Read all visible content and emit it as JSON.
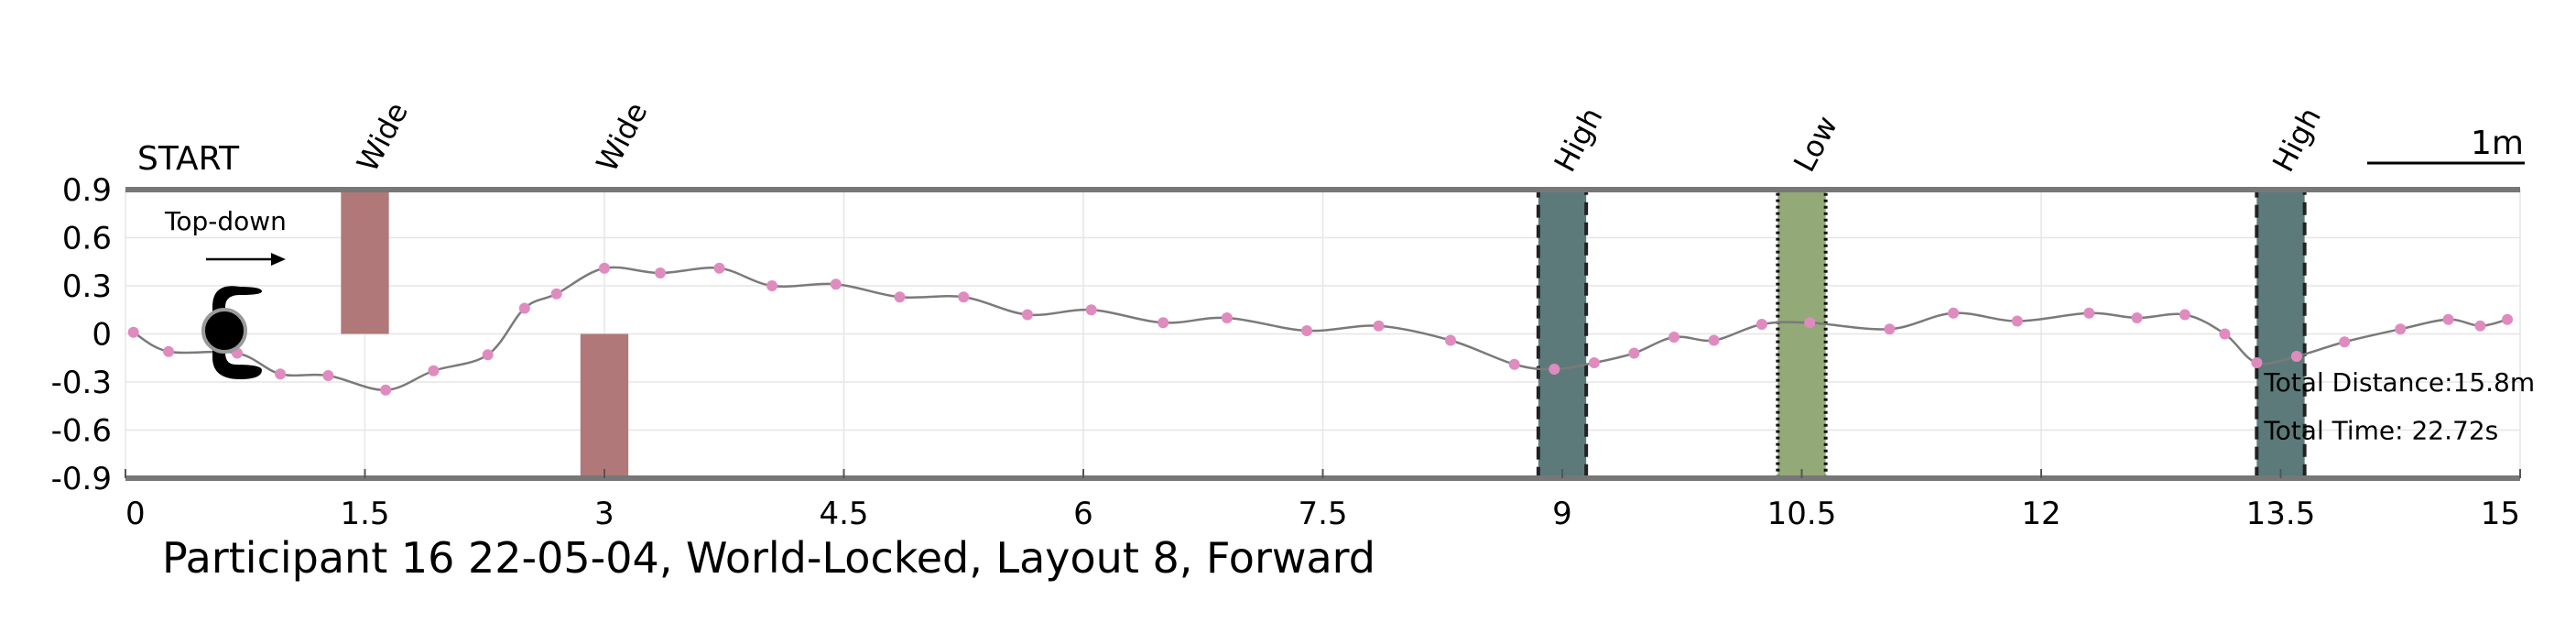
{
  "chart_data": {
    "type": "line",
    "title": "Participant 16 22-05-04, World-Locked, Layout 8, Forward",
    "start_label": "START",
    "direction_label": "Top-down",
    "scale_label": "1m",
    "xlim": [
      0,
      15
    ],
    "ylim": [
      -0.9,
      0.9
    ],
    "x_ticks": [
      0,
      1.5,
      3,
      4.5,
      6,
      7.5,
      9,
      10.5,
      12,
      13.5,
      15
    ],
    "x_tick_labels": [
      "0",
      "1.5",
      "3",
      "4.5",
      "6",
      "7.5",
      "9",
      "10.5",
      "12",
      "13.5",
      "15"
    ],
    "y_ticks": [
      0.9,
      0.6,
      0.3,
      0,
      -0.3,
      -0.6,
      -0.9
    ],
    "y_tick_labels": [
      "0.9",
      "0.6",
      "0.3",
      "0",
      "-0.3",
      "-0.6",
      "-0.9"
    ],
    "grid": true,
    "path": {
      "color": "#7a7a7a",
      "marker_color": "#e08bbf",
      "x": [
        0.05,
        0.27,
        0.7,
        0.97,
        1.27,
        1.63,
        1.93,
        2.27,
        2.5,
        2.7,
        3.0,
        3.35,
        3.72,
        4.05,
        4.45,
        4.85,
        5.25,
        5.65,
        6.05,
        6.5,
        6.9,
        7.4,
        7.85,
        8.3,
        8.7,
        8.95,
        9.2,
        9.45,
        9.7,
        9.95,
        10.25,
        10.55,
        11.05,
        11.45,
        11.85,
        12.3,
        12.6,
        12.9,
        13.15,
        13.35,
        13.6,
        13.9,
        14.25,
        14.55,
        14.75,
        14.92
      ],
      "y": [
        0.01,
        -0.11,
        -0.12,
        -0.25,
        -0.26,
        -0.35,
        -0.23,
        -0.13,
        0.16,
        0.25,
        0.41,
        0.38,
        0.41,
        0.3,
        0.31,
        0.23,
        0.23,
        0.12,
        0.15,
        0.07,
        0.1,
        0.02,
        0.05,
        -0.04,
        -0.19,
        -0.22,
        -0.18,
        -0.12,
        -0.02,
        -0.04,
        0.06,
        0.07,
        0.03,
        0.13,
        0.08,
        0.13,
        0.1,
        0.12,
        0.0,
        -0.18,
        -0.14,
        -0.05,
        0.03,
        0.09,
        0.05,
        0.09
      ]
    },
    "obstacles": [
      {
        "label": "Wide",
        "x0": 1.35,
        "x1": 1.65,
        "y0": 0.0,
        "y1": 0.9,
        "color": "#b07878",
        "border": "none"
      },
      {
        "label": "Wide",
        "x0": 2.85,
        "x1": 3.15,
        "y0": -0.9,
        "y1": 0.0,
        "color": "#b07878",
        "border": "none"
      },
      {
        "label": "High",
        "x0": 8.85,
        "x1": 9.15,
        "y0": -0.9,
        "y1": 0.9,
        "color": "#5c7a7a",
        "border": "dashed"
      },
      {
        "label": "Low",
        "x0": 10.35,
        "x1": 10.65,
        "y0": -0.9,
        "y1": 0.9,
        "color": "#93a977",
        "border": "dotted"
      },
      {
        "label": "High",
        "x0": 13.35,
        "x1": 13.65,
        "y0": -0.9,
        "y1": 0.9,
        "color": "#5c7a7a",
        "border": "dashed"
      }
    ],
    "annotations": [
      {
        "text": "Total Distance:15.8m",
        "x": 13.35,
        "y": -0.3
      },
      {
        "text": "Total Time: 22.72s",
        "x": 13.35,
        "y": -0.6
      }
    ]
  }
}
